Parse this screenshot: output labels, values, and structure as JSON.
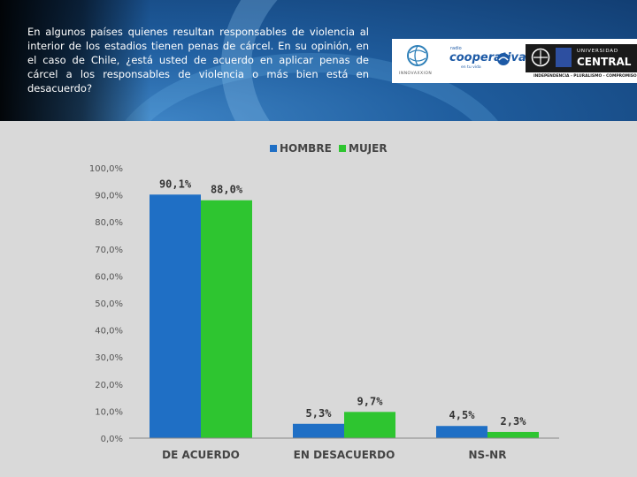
{
  "question": "En algunos países quienes resultan responsables de violencia al interior de los estadios tienen penas de cárcel. En su opinión, en el caso de Chile, ¿está usted de acuerdo en aplicar penas de cárcel a los responsables de violencia o más bien está en desacuerdo?",
  "logos": {
    "innovaxxion": "INNOVAXXION",
    "coop_top": "radio",
    "coop_name": "cooperativa",
    "coop_sub": "en tu vida",
    "uc_line1": "UNIVERSIDAD",
    "uc_line2": "CENTRAL",
    "uc_sub": "INDEPENDENCIA - PLURALISMO - COMPROMISO"
  },
  "colors": {
    "hombre": "#1f6fc5",
    "mujer": "#2ec530",
    "axis": "#555555"
  },
  "chart_data": {
    "type": "bar",
    "categories": [
      "DE ACUERDO",
      "EN DESACUERDO",
      "NS-NR"
    ],
    "series": [
      {
        "name": "HOMBRE",
        "values": [
          90.1,
          5.3,
          4.5
        ],
        "labels": [
          "90,1%",
          "5,3%",
          "4,5%"
        ]
      },
      {
        "name": "MUJER",
        "values": [
          88.0,
          9.7,
          2.3
        ],
        "labels": [
          "88,0%",
          "9,7%",
          "2,3%"
        ]
      }
    ],
    "yticks": [
      "0,0%",
      "10,0%",
      "20,0%",
      "30,0%",
      "40,0%",
      "50,0%",
      "60,0%",
      "70,0%",
      "80,0%",
      "90,0%",
      "100,0%"
    ],
    "ylim": [
      0,
      100
    ],
    "legend": "top",
    "grid": false
  }
}
